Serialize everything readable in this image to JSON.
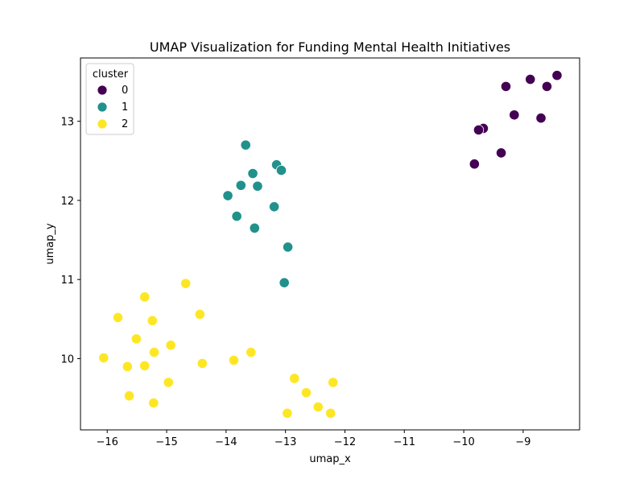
{
  "chart_data": {
    "type": "scatter",
    "title": "UMAP Visualization for Funding Mental Health Initiatives",
    "xlabel": "umap_x",
    "ylabel": "umap_y",
    "xlim": [
      -16.45,
      -8.05
    ],
    "ylim": [
      9.1,
      13.8
    ],
    "xticks": [
      -16,
      -15,
      -14,
      -13,
      -12,
      -11,
      -10,
      -9
    ],
    "yticks": [
      10,
      11,
      12,
      13
    ],
    "grid": false,
    "legend": {
      "title": "cluster",
      "placement": "top-left"
    },
    "series": [
      {
        "name": "0",
        "color": "#440154",
        "points": [
          [
            -8.43,
            13.58
          ],
          [
            -8.88,
            13.53
          ],
          [
            -8.6,
            13.44
          ],
          [
            -9.29,
            13.44
          ],
          [
            -9.15,
            13.08
          ],
          [
            -8.7,
            13.04
          ],
          [
            -9.67,
            12.91
          ],
          [
            -9.75,
            12.89
          ],
          [
            -9.37,
            12.6
          ],
          [
            -9.82,
            12.46
          ]
        ]
      },
      {
        "name": "1",
        "color": "#21918c",
        "points": [
          [
            -13.67,
            12.7
          ],
          [
            -13.15,
            12.45
          ],
          [
            -13.07,
            12.38
          ],
          [
            -13.55,
            12.34
          ],
          [
            -13.75,
            12.19
          ],
          [
            -13.47,
            12.18
          ],
          [
            -13.97,
            12.06
          ],
          [
            -13.19,
            11.92
          ],
          [
            -13.82,
            11.8
          ],
          [
            -13.52,
            11.65
          ],
          [
            -12.96,
            11.41
          ],
          [
            -13.02,
            10.96
          ]
        ]
      },
      {
        "name": "2",
        "color": "#fde725",
        "points": [
          [
            -14.68,
            10.95
          ],
          [
            -15.37,
            10.78
          ],
          [
            -14.44,
            10.56
          ],
          [
            -15.82,
            10.52
          ],
          [
            -15.24,
            10.48
          ],
          [
            -15.51,
            10.25
          ],
          [
            -14.93,
            10.17
          ],
          [
            -15.21,
            10.08
          ],
          [
            -13.58,
            10.08
          ],
          [
            -16.06,
            10.01
          ],
          [
            -13.87,
            9.98
          ],
          [
            -14.4,
            9.94
          ],
          [
            -15.37,
            9.91
          ],
          [
            -15.66,
            9.9
          ],
          [
            -12.85,
            9.75
          ],
          [
            -14.97,
            9.7
          ],
          [
            -12.2,
            9.7
          ],
          [
            -12.65,
            9.57
          ],
          [
            -15.63,
            9.53
          ],
          [
            -15.22,
            9.44
          ],
          [
            -12.45,
            9.39
          ],
          [
            -12.97,
            9.31
          ],
          [
            -12.24,
            9.31
          ]
        ]
      }
    ]
  }
}
